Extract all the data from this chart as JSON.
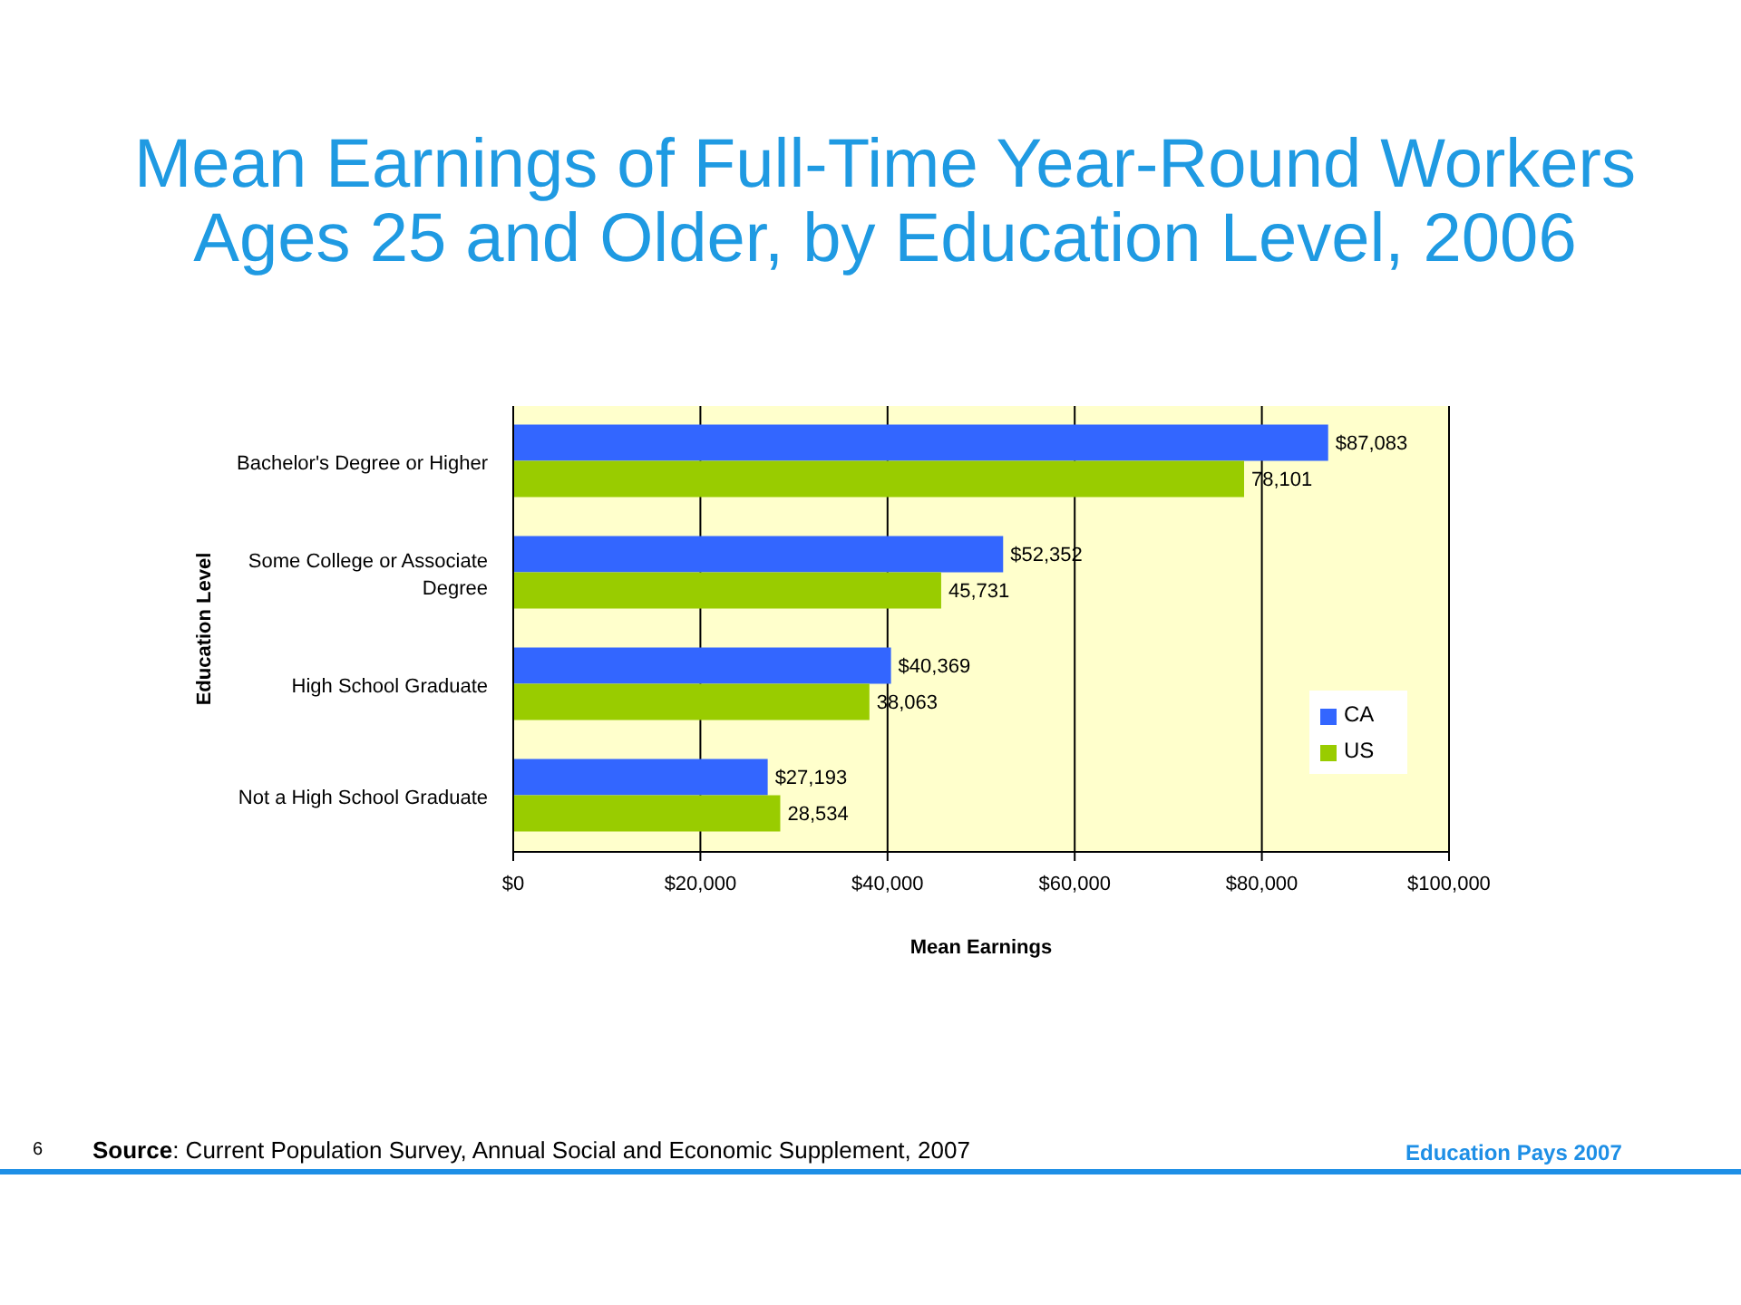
{
  "chart_data": {
    "type": "bar",
    "orientation": "horizontal",
    "title": "Mean Earnings of Full-Time Year-Round Workers Ages 25 and Older, by Education Level, 2006",
    "xlabel": "Mean Earnings",
    "ylabel": "Education Level",
    "categories": [
      "Bachelor's Degree or Higher",
      "Some College or Associate Degree",
      "High School Graduate",
      "Not a High School Graduate"
    ],
    "series": [
      {
        "name": "CA",
        "color": "#3366ff",
        "values": [
          87083,
          52352,
          40369,
          27193
        ],
        "value_labels": [
          "$87,083",
          "$52,352",
          "$40,369",
          "$27,193"
        ]
      },
      {
        "name": "US",
        "color": "#99cc00",
        "values": [
          78101,
          45731,
          38063,
          28534
        ],
        "value_labels": [
          "78,101",
          "45,731",
          "38,063",
          "28,534"
        ]
      }
    ],
    "xlim": [
      0,
      100000
    ],
    "xticks": [
      {
        "value": 0,
        "label": "$0"
      },
      {
        "value": 20000,
        "label": "$20,000"
      },
      {
        "value": 40000,
        "label": "$40,000"
      },
      {
        "value": 60000,
        "label": "$60,000"
      },
      {
        "value": 80000,
        "label": "$80,000"
      },
      {
        "value": 100000,
        "label": "$100,000"
      }
    ],
    "grid": "x",
    "legend": "right",
    "annotations": [
      "6",
      "Source: Current Population Survey, Annual Social and Economic Supplement, 2007",
      "Education Pays 2007"
    ]
  }
}
